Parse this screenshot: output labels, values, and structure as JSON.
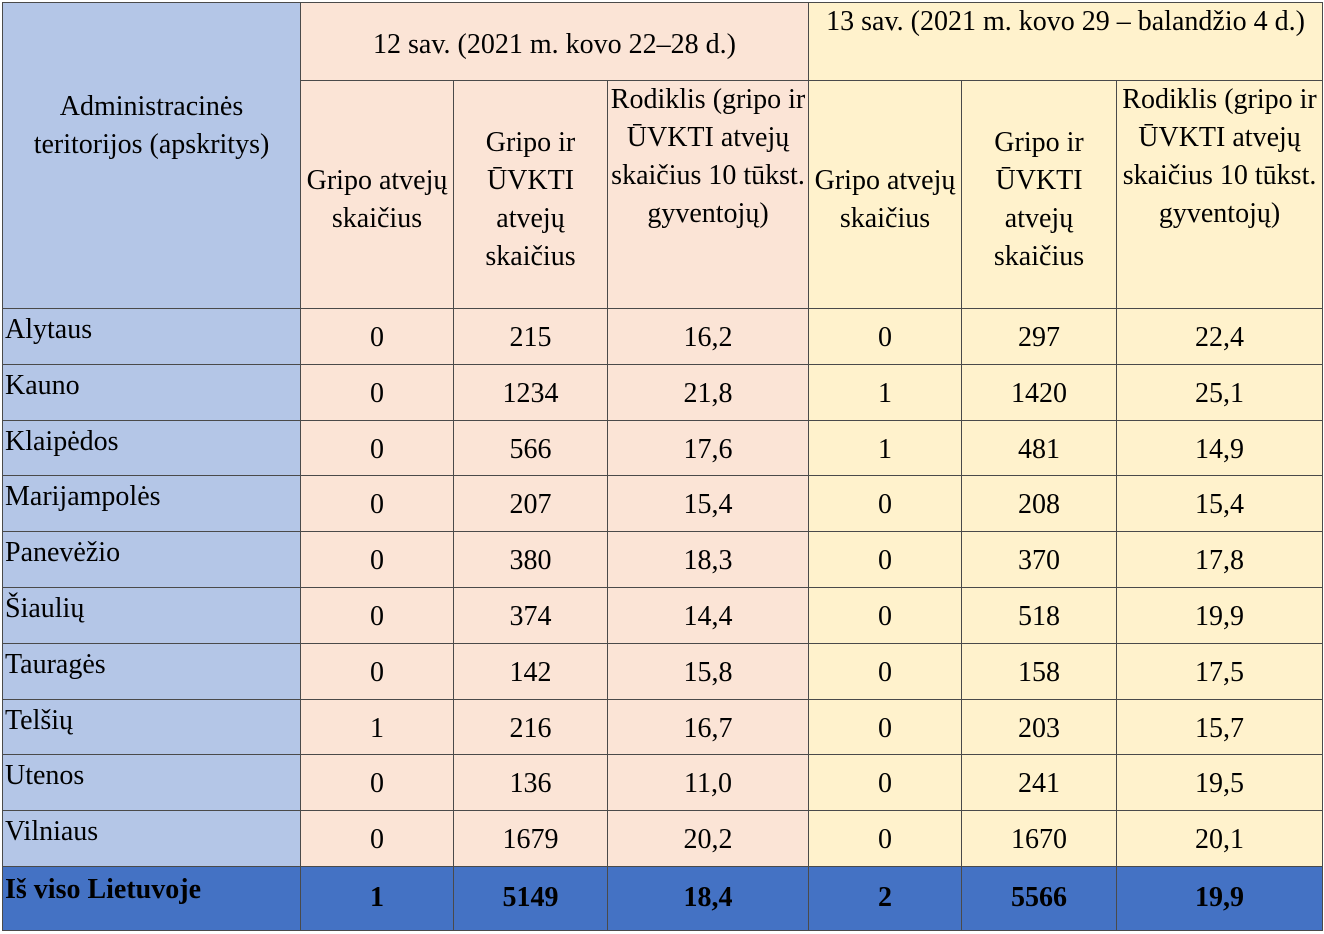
{
  "table": {
    "header": {
      "region_col": "Administracinės teritorijos (apskritys)",
      "week12": "12 sav. (2021 m. kovo 22–28 d.)",
      "week13": "13 sav. (2021 m. kovo 29 – balandžio 4 d.)",
      "sub_flu": "Gripo atvejų skaičius",
      "sub_flu_ari": "Gripo ir ŪVKTI atvejų skaičius",
      "sub_rate": "Rodiklis (gripo ir ŪVKTI atvejų skaičius 10 tūkst. gyventojų)"
    },
    "rows": [
      {
        "region": "Alytaus",
        "w12_flu": "0",
        "w12_total": "215",
        "w12_rate": "16,2",
        "w13_flu": "0",
        "w13_total": "297",
        "w13_rate": "22,4"
      },
      {
        "region": "Kauno",
        "w12_flu": "0",
        "w12_total": "1234",
        "w12_rate": "21,8",
        "w13_flu": "1",
        "w13_total": "1420",
        "w13_rate": "25,1"
      },
      {
        "region": "Klaipėdos",
        "w12_flu": "0",
        "w12_total": "566",
        "w12_rate": "17,6",
        "w13_flu": "1",
        "w13_total": "481",
        "w13_rate": "14,9"
      },
      {
        "region": "Marijampolės",
        "w12_flu": "0",
        "w12_total": "207",
        "w12_rate": "15,4",
        "w13_flu": "0",
        "w13_total": "208",
        "w13_rate": "15,4"
      },
      {
        "region": "Panevėžio",
        "w12_flu": "0",
        "w12_total": "380",
        "w12_rate": "18,3",
        "w13_flu": "0",
        "w13_total": "370",
        "w13_rate": "17,8"
      },
      {
        "region": "Šiaulių",
        "w12_flu": "0",
        "w12_total": "374",
        "w12_rate": "14,4",
        "w13_flu": "0",
        "w13_total": "518",
        "w13_rate": "19,9"
      },
      {
        "region": "Tauragės",
        "w12_flu": "0",
        "w12_total": "142",
        "w12_rate": "15,8",
        "w13_flu": "0",
        "w13_total": "158",
        "w13_rate": "17,5"
      },
      {
        "region": "Telšių",
        "w12_flu": "1",
        "w12_total": "216",
        "w12_rate": "16,7",
        "w13_flu": "0",
        "w13_total": "203",
        "w13_rate": "15,7"
      },
      {
        "region": "Utenos",
        "w12_flu": "0",
        "w12_total": "136",
        "w12_rate": "11,0",
        "w13_flu": "0",
        "w13_total": "241",
        "w13_rate": "19,5"
      },
      {
        "region": "Vilniaus",
        "w12_flu": "0",
        "w12_total": "1679",
        "w12_rate": "20,2",
        "w13_flu": "0",
        "w13_total": "1670",
        "w13_rate": "20,1"
      }
    ],
    "total": {
      "region": "Iš viso Lietuvoje",
      "w12_flu": "1",
      "w12_total": "5149",
      "w12_rate": "18,4",
      "w13_flu": "2",
      "w13_total": "5566",
      "w13_rate": "19,9"
    },
    "colors": {
      "region_bg": "#b4c6e7",
      "week12_bg": "#fbe4d6",
      "week13_bg": "#fff2cc",
      "total_bg": "#4472c4"
    }
  }
}
